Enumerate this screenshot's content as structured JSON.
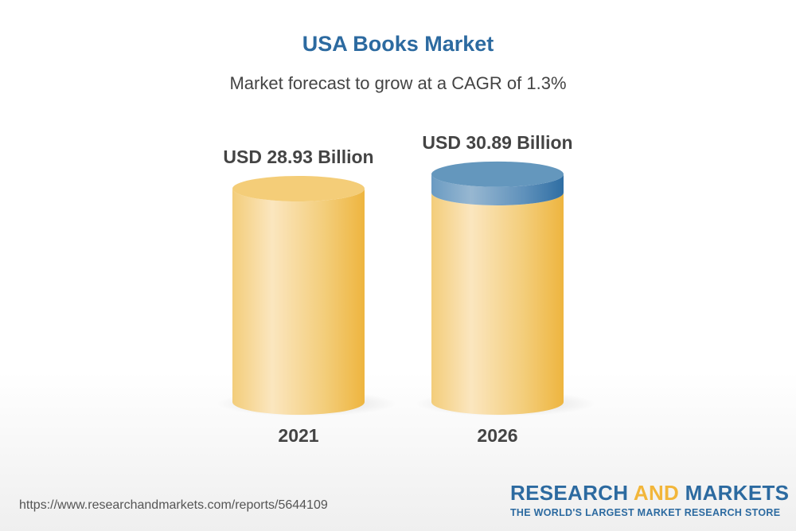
{
  "title": "USA Books Market",
  "subtitle": "Market forecast to grow at a CAGR of 1.3%",
  "chart_data": {
    "type": "bar",
    "style": "3d-cylinder",
    "categories": [
      "2021",
      "2026"
    ],
    "values": [
      28.93,
      30.89
    ],
    "data_labels": [
      "USD 28.93 Billion",
      "USD 30.89 Billion"
    ],
    "unit": "USD Billion",
    "cagr": "1.3%",
    "colors": {
      "base": "#f2c766",
      "growth": "#5b8fba"
    }
  },
  "footer": {
    "url": "https://www.researchandmarkets.com/reports/5644109",
    "logo_part1": "RESEARCH ",
    "logo_part2": "AND",
    "logo_part3": " MARKETS",
    "tagline": "THE WORLD'S LARGEST MARKET RESEARCH STORE"
  }
}
